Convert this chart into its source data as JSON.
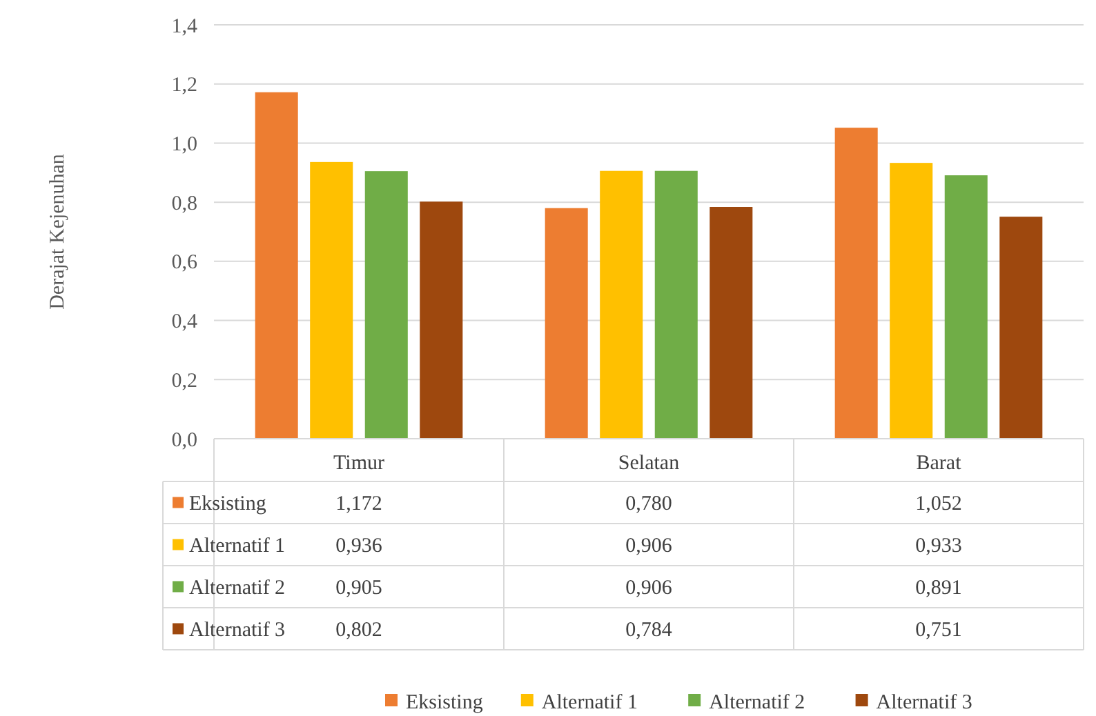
{
  "chart_data": {
    "type": "bar",
    "ylabel": "Derajat Kejenuhan",
    "categories": [
      "Timur",
      "Selatan",
      "Barat"
    ],
    "series": [
      {
        "name": "Eksisting",
        "color": "#ed7d31",
        "values": [
          1.172,
          0.78,
          1.052
        ],
        "value_labels": [
          "1,172",
          "0,780",
          "1,052"
        ]
      },
      {
        "name": "Alternatif 1",
        "color": "#ffc000",
        "values": [
          0.936,
          0.906,
          0.933
        ],
        "value_labels": [
          "0,936",
          "0,906",
          "0,933"
        ]
      },
      {
        "name": "Alternatif 2",
        "color": "#70ad47",
        "values": [
          0.905,
          0.906,
          0.891
        ],
        "value_labels": [
          "0,905",
          "0,906",
          "0,891"
        ]
      },
      {
        "name": "Alternatif 3",
        "color": "#9e480e",
        "values": [
          0.802,
          0.784,
          0.751
        ],
        "value_labels": [
          "0,802",
          "0,784",
          "0,751"
        ]
      }
    ],
    "ylim": [
      0,
      1.4
    ],
    "yticks": [
      {
        "value": 0,
        "label": "0,0"
      },
      {
        "value": 0.2,
        "label": "0,2"
      },
      {
        "value": 0.4,
        "label": "0,4"
      },
      {
        "value": 0.6,
        "label": "0,6"
      },
      {
        "value": 0.8,
        "label": "0,8"
      },
      {
        "value": 1.0,
        "label": "1,0"
      },
      {
        "value": 1.2,
        "label": "1,2"
      },
      {
        "value": 1.4,
        "label": "1,4"
      }
    ],
    "grid": "y",
    "legend": "bottom"
  }
}
